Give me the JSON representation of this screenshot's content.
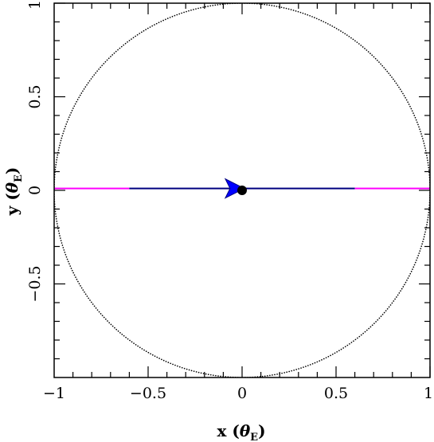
{
  "chart_data": {
    "type": "line",
    "title": "",
    "xlabel_main": "x (",
    "xlabel_sym": "θ",
    "xlabel_sub": "E",
    "xlabel_close": ")",
    "ylabel_main": "y (",
    "ylabel_sym": "θ",
    "ylabel_sub": "E",
    "ylabel_close": ")",
    "xlim": [
      -1,
      1
    ],
    "ylim": [
      -1,
      1
    ],
    "xticks": [
      -1,
      -0.5,
      0,
      0.5,
      1
    ],
    "xtick_labels": [
      "−1",
      "−0.5",
      "0",
      "0.5",
      "1"
    ],
    "yticks": [
      -0.5,
      0,
      0.5,
      1
    ],
    "ytick_labels": [
      "−0.5",
      "0",
      "0.5",
      "1"
    ],
    "grid": false,
    "einstein_ring": {
      "cx": 0,
      "cy": 0,
      "r": 1,
      "style": "dotted",
      "color": "#000000"
    },
    "source_track": [
      {
        "name": "",
        "x": [
          -1,
          -0.6
        ],
        "y": [
          0.01,
          0.01
        ],
        "color": "#ff00ff"
      },
      {
        "name": "",
        "x": [
          -0.6,
          0.6
        ],
        "y": [
          0.01,
          0.01
        ],
        "color": "#000080"
      },
      {
        "name": "",
        "x": [
          0.6,
          1
        ],
        "y": [
          0.01,
          0.01
        ],
        "color": "#ff00ff"
      }
    ],
    "direction_arrow": {
      "x": -0.03,
      "y": 0.01,
      "dx": 1,
      "dy": 0,
      "color": "#0000ff"
    },
    "lens": {
      "x": 0,
      "y": 0.0,
      "color": "#000000"
    }
  }
}
